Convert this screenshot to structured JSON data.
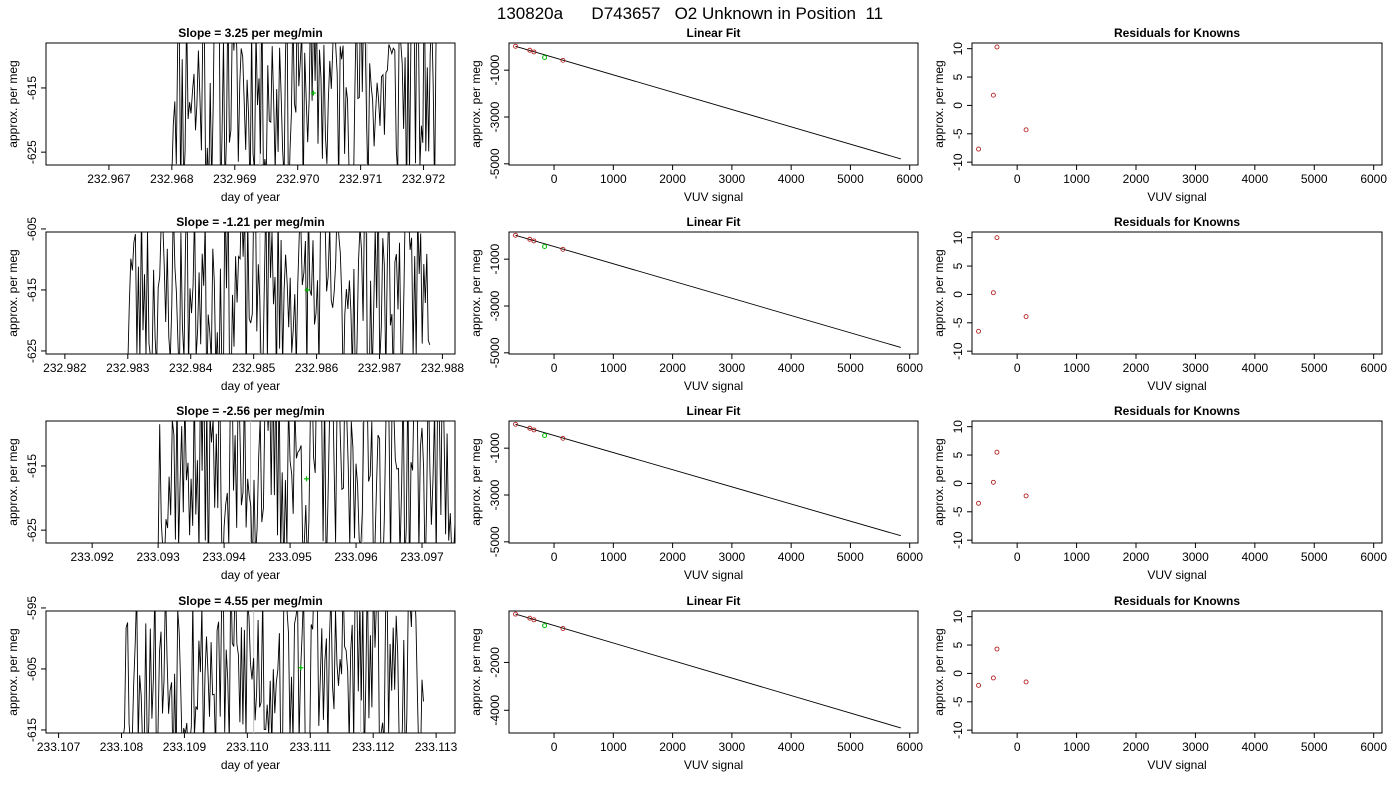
{
  "figure": {
    "title": "130820a      D743657   O2 Unknown in Position  11"
  },
  "chart_data": [
    {
      "type": "line",
      "row": 0,
      "col": 0,
      "title": "Slope =  3.25  per meg/min",
      "xlabel": "day of year",
      "ylabel": "approx. per meg",
      "xlim": [
        232.966,
        232.9725
      ],
      "ylim": [
        -627,
        -608
      ],
      "xticks": [
        232.967,
        232.968,
        232.969,
        232.97,
        232.971,
        232.972
      ],
      "xtick_labels": [
        "232.967",
        "232.968",
        "232.969",
        "232.970",
        "232.971",
        "232.972"
      ],
      "yticks": [
        -615,
        -625
      ],
      "ytick_labels": [
        "-615",
        "-625"
      ],
      "x_start": 232.968,
      "x_end": 232.9722,
      "center": -615,
      "amp": 17,
      "seed": 11,
      "n": 180,
      "vlines": [
        232.9694,
        232.9711
      ],
      "highlight": [
        232.97025,
        -615.8
      ]
    },
    {
      "type": "line",
      "row": 1,
      "col": 0,
      "title": "Slope =  -1.21  per meg/min",
      "xlabel": "day of year",
      "ylabel": "approx. per meg",
      "xlim": [
        232.9817,
        232.9882
      ],
      "ylim": [
        -625.5,
        -605.5
      ],
      "xticks": [
        232.982,
        232.983,
        232.984,
        232.985,
        232.986,
        232.987,
        232.988
      ],
      "xtick_labels": [
        "232.982",
        "232.983",
        "232.984",
        "232.985",
        "232.986",
        "232.987",
        "232.988"
      ],
      "yticks": [
        -605,
        -615,
        -625
      ],
      "ytick_labels": [
        "-605",
        "-615",
        "-625"
      ],
      "x_start": 232.983,
      "x_end": 232.9878,
      "center": -615,
      "amp": 16,
      "seed": 23,
      "n": 200,
      "vlines": [
        232.9851,
        232.9868
      ],
      "highlight": [
        232.98585,
        -615.0
      ]
    },
    {
      "type": "line",
      "row": 2,
      "col": 0,
      "title": "Slope =  -2.56  per meg/min",
      "xlabel": "day of year",
      "ylabel": "approx. per meg",
      "xlim": [
        233.0913,
        233.0975
      ],
      "ylim": [
        -627,
        -608
      ],
      "xticks": [
        233.092,
        233.093,
        233.094,
        233.095,
        233.096,
        233.097
      ],
      "xtick_labels": [
        "233.092",
        "233.093",
        "233.094",
        "233.095",
        "233.096",
        "233.097"
      ],
      "yticks": [
        -615,
        -625
      ],
      "ytick_labels": [
        "-615",
        "-625"
      ],
      "x_start": 233.093,
      "x_end": 233.0975,
      "center": -615,
      "amp": 17,
      "seed": 37,
      "n": 190,
      "vlines": [
        233.0944,
        233.0961
      ],
      "highlight": [
        233.09525,
        -617.0
      ]
    },
    {
      "type": "line",
      "row": 3,
      "col": 0,
      "title": "Slope =  4.55  per meg/min",
      "xlabel": "day of year",
      "ylabel": "approx. per meg",
      "xlim": [
        233.1068,
        233.1133
      ],
      "ylim": [
        -615.5,
        -595.5
      ],
      "xticks": [
        233.107,
        233.108,
        233.109,
        233.11,
        233.111,
        233.112,
        233.113
      ],
      "xtick_labels": [
        "233.107",
        "233.108",
        "233.109",
        "233.110",
        "233.111",
        "233.112",
        "233.113"
      ],
      "yticks": [
        -595,
        -605,
        -615
      ],
      "ytick_labels": [
        "-595",
        "-605",
        "-615"
      ],
      "x_start": 233.108,
      "x_end": 233.1128,
      "center": -605,
      "amp": 16,
      "seed": 53,
      "n": 200,
      "vlines": [
        233.1101,
        233.1118
      ],
      "highlight": [
        233.11085,
        -604.8
      ]
    },
    {
      "type": "scatter",
      "row": 0,
      "col": 1,
      "title": "Linear Fit",
      "xlabel": "VUV signal",
      "ylabel": "approx. per meg",
      "xlim": [
        -760,
        6140
      ],
      "ylim": [
        -5050,
        160
      ],
      "xticks": [
        0,
        1000,
        2000,
        3000,
        4000,
        5000,
        6000
      ],
      "xtick_labels": [
        "0",
        "1000",
        "2000",
        "3000",
        "4000",
        "5000",
        "6000"
      ],
      "yticks": [
        -1000,
        -3000,
        -5000
      ],
      "ytick_labels": [
        "-1000",
        "-3000",
        "-5000"
      ],
      "line": [
        [
          -650,
          20
        ],
        [
          5850,
          -4790
        ]
      ],
      "points": [
        [
          -650,
          20
        ],
        [
          -410,
          -150
        ],
        [
          -340,
          -220
        ],
        [
          150,
          -580
        ]
      ],
      "highlight": [
        -160,
        -460
      ]
    },
    {
      "type": "scatter",
      "row": 1,
      "col": 1,
      "title": "Linear Fit",
      "xlabel": "VUV signal",
      "ylabel": "approx. per meg",
      "xlim": [
        -760,
        6140
      ],
      "ylim": [
        -5050,
        160
      ],
      "xticks": [
        0,
        1000,
        2000,
        3000,
        4000,
        5000,
        6000
      ],
      "xtick_labels": [
        "0",
        "1000",
        "2000",
        "3000",
        "4000",
        "5000",
        "6000"
      ],
      "yticks": [
        -1000,
        -3000,
        -5000
      ],
      "ytick_labels": [
        "-1000",
        "-3000",
        "-5000"
      ],
      "line": [
        [
          -650,
          20
        ],
        [
          5850,
          -4770
        ]
      ],
      "points": [
        [
          -650,
          20
        ],
        [
          -410,
          -150
        ],
        [
          -340,
          -220
        ],
        [
          150,
          -580
        ]
      ],
      "highlight": [
        -160,
        -460
      ]
    },
    {
      "type": "scatter",
      "row": 2,
      "col": 1,
      "title": "Linear Fit",
      "xlabel": "VUV signal",
      "ylabel": "approx. per meg",
      "xlim": [
        -760,
        6140
      ],
      "ylim": [
        -5050,
        160
      ],
      "xticks": [
        0,
        1000,
        2000,
        3000,
        4000,
        5000,
        6000
      ],
      "xtick_labels": [
        "0",
        "1000",
        "2000",
        "3000",
        "4000",
        "5000",
        "6000"
      ],
      "yticks": [
        -1000,
        -3000,
        -5000
      ],
      "ytick_labels": [
        "-1000",
        "-3000",
        "-5000"
      ],
      "line": [
        [
          -650,
          20
        ],
        [
          5850,
          -4740
        ]
      ],
      "points": [
        [
          -650,
          20
        ],
        [
          -410,
          -150
        ],
        [
          -340,
          -220
        ],
        [
          150,
          -580
        ]
      ],
      "highlight": [
        -160,
        -460
      ]
    },
    {
      "type": "scatter",
      "row": 3,
      "col": 1,
      "title": "Linear Fit",
      "xlabel": "VUV signal",
      "ylabel": "approx. per meg",
      "xlim": [
        -760,
        6140
      ],
      "ylim": [
        -4950,
        150
      ],
      "xticks": [
        0,
        1000,
        2000,
        3000,
        4000,
        5000,
        6000
      ],
      "xtick_labels": [
        "0",
        "1000",
        "2000",
        "3000",
        "4000",
        "5000",
        "6000"
      ],
      "yticks": [
        -2000,
        -4000
      ],
      "ytick_labels": [
        "-2000",
        "-4000"
      ],
      "line": [
        [
          -650,
          20
        ],
        [
          5850,
          -4740
        ]
      ],
      "points": [
        [
          -650,
          20
        ],
        [
          -410,
          -150
        ],
        [
          -340,
          -220
        ],
        [
          150,
          -580
        ]
      ],
      "highlight": [
        -160,
        -460
      ]
    },
    {
      "type": "scatter",
      "row": 0,
      "col": 2,
      "title": "Residuals for Knowns",
      "xlabel": "VUV signal",
      "ylabel": "approx. per meg",
      "xlim": [
        -760,
        6140
      ],
      "ylim": [
        -10.5,
        11
      ],
      "xticks": [
        0,
        1000,
        2000,
        3000,
        4000,
        5000,
        6000
      ],
      "xtick_labels": [
        "0",
        "1000",
        "2000",
        "3000",
        "4000",
        "5000",
        "6000"
      ],
      "yticks": [
        10,
        5,
        0,
        -5,
        -10
      ],
      "ytick_labels": [
        "10",
        "5",
        "0",
        "-5",
        "-10"
      ],
      "points": [
        [
          -650,
          -7.7
        ],
        [
          -400,
          1.8
        ],
        [
          -340,
          10.3
        ],
        [
          150,
          -4.3
        ]
      ]
    },
    {
      "type": "scatter",
      "row": 1,
      "col": 2,
      "title": "Residuals for Knowns",
      "xlabel": "VUV signal",
      "ylabel": "approx. per meg",
      "xlim": [
        -760,
        6140
      ],
      "ylim": [
        -10.5,
        11
      ],
      "xticks": [
        0,
        1000,
        2000,
        3000,
        4000,
        5000,
        6000
      ],
      "xtick_labels": [
        "0",
        "1000",
        "2000",
        "3000",
        "4000",
        "5000",
        "6000"
      ],
      "yticks": [
        10,
        5,
        0,
        -5,
        -10
      ],
      "ytick_labels": [
        "10",
        "5",
        "0",
        "-5",
        "-10"
      ],
      "points": [
        [
          -650,
          -6.5
        ],
        [
          -400,
          0.3
        ],
        [
          -340,
          10.0
        ],
        [
          150,
          -3.9
        ]
      ]
    },
    {
      "type": "scatter",
      "row": 2,
      "col": 2,
      "title": "Residuals for Knowns",
      "xlabel": "VUV signal",
      "ylabel": "approx. per meg",
      "xlim": [
        -760,
        6140
      ],
      "ylim": [
        -10.5,
        11
      ],
      "xticks": [
        0,
        1000,
        2000,
        3000,
        4000,
        5000,
        6000
      ],
      "xtick_labels": [
        "0",
        "1000",
        "2000",
        "3000",
        "4000",
        "5000",
        "6000"
      ],
      "yticks": [
        10,
        5,
        0,
        -5,
        -10
      ],
      "ytick_labels": [
        "10",
        "5",
        "0",
        "-5",
        "-10"
      ],
      "points": [
        [
          -650,
          -3.5
        ],
        [
          -400,
          0.2
        ],
        [
          -340,
          5.5
        ],
        [
          150,
          -2.2
        ]
      ]
    },
    {
      "type": "scatter",
      "row": 3,
      "col": 2,
      "title": "Residuals for Knowns",
      "xlabel": "VUV signal",
      "ylabel": "approx. per meg",
      "xlim": [
        -760,
        6140
      ],
      "ylim": [
        -10.5,
        11
      ],
      "xticks": [
        0,
        1000,
        2000,
        3000,
        4000,
        5000,
        6000
      ],
      "xtick_labels": [
        "0",
        "1000",
        "2000",
        "3000",
        "4000",
        "5000",
        "6000"
      ],
      "yticks": [
        10,
        5,
        0,
        -5,
        -10
      ],
      "ytick_labels": [
        "10",
        "5",
        "0",
        "-5",
        "-10"
      ],
      "points": [
        [
          -650,
          -2.1
        ],
        [
          -400,
          -0.8
        ],
        [
          -340,
          4.3
        ],
        [
          150,
          -1.5
        ]
      ]
    }
  ],
  "colors": {
    "line": "#000000",
    "point": "#b22222",
    "highlight": "#00c000",
    "vline": "#bebebe"
  }
}
